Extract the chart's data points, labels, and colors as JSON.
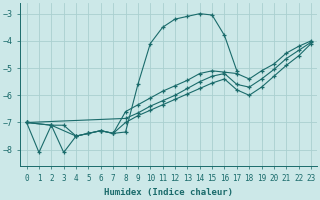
{
  "xlabel": "Humidex (Indice chaleur)",
  "xlim": [
    -0.5,
    23.5
  ],
  "ylim": [
    -8.6,
    -2.6
  ],
  "yticks": [
    -8,
    -7,
    -6,
    -5,
    -4,
    -3
  ],
  "xticks": [
    0,
    1,
    2,
    3,
    4,
    5,
    6,
    7,
    8,
    9,
    10,
    11,
    12,
    13,
    14,
    15,
    16,
    17,
    18,
    19,
    20,
    21,
    22,
    23
  ],
  "bg_color": "#cce8e8",
  "grid_color": "#aad0d0",
  "line_color": "#1a6b6b",
  "lines": [
    {
      "x": [
        0,
        1,
        2,
        3,
        4,
        5,
        6,
        7,
        8,
        9,
        10,
        11,
        12,
        13,
        14,
        15,
        16,
        17
      ],
      "y": [
        -7.0,
        -8.1,
        -7.1,
        -8.1,
        -7.5,
        -7.4,
        -7.3,
        -7.4,
        -7.35,
        -5.6,
        -4.1,
        -3.5,
        -3.2,
        -3.1,
        -3.0,
        -3.05,
        -3.8,
        -5.1
      ]
    },
    {
      "x": [
        0,
        2,
        4,
        5,
        6,
        7,
        8,
        9,
        10,
        11,
        12,
        13,
        14,
        15,
        16,
        17,
        18,
        19,
        20,
        21,
        22,
        23
      ],
      "y": [
        -7.0,
        -7.1,
        -7.5,
        -7.4,
        -7.3,
        -7.4,
        -6.6,
        -6.35,
        -6.1,
        -5.85,
        -5.65,
        -5.45,
        -5.2,
        -5.1,
        -5.15,
        -5.2,
        -5.4,
        -5.1,
        -4.85,
        -4.45,
        -4.2,
        -4.0
      ]
    },
    {
      "x": [
        0,
        8,
        9,
        10,
        11,
        12,
        13,
        14,
        15,
        16,
        17,
        18,
        19,
        20,
        21,
        22,
        23
      ],
      "y": [
        -7.0,
        -6.85,
        -6.65,
        -6.4,
        -6.2,
        -6.0,
        -5.75,
        -5.5,
        -5.3,
        -5.2,
        -5.6,
        -5.7,
        -5.4,
        -5.05,
        -4.65,
        -4.35,
        -4.05
      ]
    },
    {
      "x": [
        0,
        2,
        3,
        4,
        5,
        6,
        7,
        8,
        9,
        10,
        11,
        12,
        13,
        14,
        15,
        16,
        17,
        18,
        19,
        20,
        21,
        22,
        23
      ],
      "y": [
        -7.0,
        -7.1,
        -7.1,
        -7.5,
        -7.4,
        -7.3,
        -7.4,
        -7.0,
        -6.75,
        -6.55,
        -6.35,
        -6.15,
        -5.95,
        -5.75,
        -5.55,
        -5.4,
        -5.8,
        -6.0,
        -5.7,
        -5.3,
        -4.9,
        -4.55,
        -4.1
      ]
    }
  ]
}
